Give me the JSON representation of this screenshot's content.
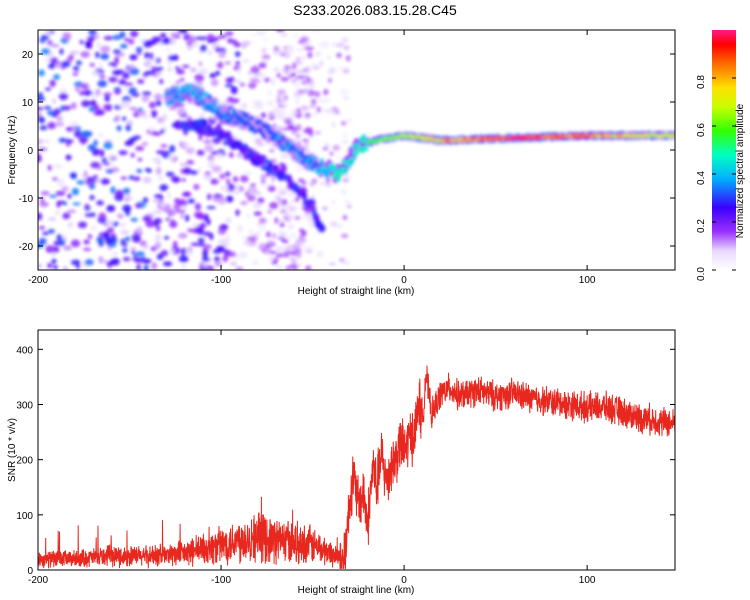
{
  "figure_title": "S233.2026.083.15.28.C45",
  "chart_data": [
    {
      "type": "heatmap",
      "title": "",
      "xlabel": "Height of straight line (km)",
      "ylabel": "Frequency (Hz)",
      "xlim": [
        -200,
        148
      ],
      "ylim": [
        -25,
        25
      ],
      "xticks": [
        {
          "value": -200,
          "label": "-200"
        },
        {
          "value": -100,
          "label": "-100"
        },
        {
          "value": 0,
          "label": "0"
        },
        {
          "value": 100,
          "label": "100"
        }
      ],
      "yticks": [
        {
          "value": 20,
          "label": "20"
        },
        {
          "value": 10,
          "label": "10"
        },
        {
          "value": 0,
          "label": "0"
        },
        {
          "value": -10,
          "label": "-10"
        },
        {
          "value": -20,
          "label": "-20"
        }
      ],
      "colorbar": {
        "label": "Normalized spectral amplitude",
        "range": [
          0,
          1
        ],
        "ticks": [
          {
            "value": 0.0,
            "label": "0.0"
          },
          {
            "value": 0.2,
            "label": "0.2"
          },
          {
            "value": 0.4,
            "label": "0.4"
          },
          {
            "value": 0.6,
            "label": "0.6"
          },
          {
            "value": 0.8,
            "label": "0.8"
          }
        ]
      },
      "ridge": {
        "description_points": [
          {
            "x": -130,
            "freq": 11,
            "amp": 0.35
          },
          {
            "x": -115,
            "freq": 12,
            "amp": 0.4
          },
          {
            "x": -100,
            "freq": 8,
            "amp": 0.35
          },
          {
            "x": -80,
            "freq": 5,
            "amp": 0.3
          },
          {
            "x": -65,
            "freq": 1,
            "amp": 0.35
          },
          {
            "x": -50,
            "freq": -3,
            "amp": 0.35
          },
          {
            "x": -35,
            "freq": -5,
            "amp": 0.5
          },
          {
            "x": -25,
            "freq": 1,
            "amp": 0.45
          },
          {
            "x": -15,
            "freq": 2,
            "amp": 0.6
          },
          {
            "x": 0,
            "freq": 3,
            "amp": 0.65
          },
          {
            "x": 20,
            "freq": 2,
            "amp": 0.8
          },
          {
            "x": 60,
            "freq": 2.5,
            "amp": 0.95
          },
          {
            "x": 100,
            "freq": 3,
            "amp": 0.85
          },
          {
            "x": 148,
            "freq": 3,
            "amp": 0.7
          }
        ],
        "secondary_points": [
          {
            "x": -125,
            "freq": 5,
            "amp": 0.3
          },
          {
            "x": -110,
            "freq": 5,
            "amp": 0.3
          },
          {
            "x": -95,
            "freq": 2,
            "amp": 0.3
          },
          {
            "x": -80,
            "freq": -2,
            "amp": 0.3
          },
          {
            "x": -65,
            "freq": -5,
            "amp": 0.3
          },
          {
            "x": -50,
            "freq": -12,
            "amp": 0.3
          },
          {
            "x": -45,
            "freq": -17,
            "amp": 0.25
          }
        ]
      }
    },
    {
      "type": "line",
      "title": "",
      "xlabel": "Height of straight line (km)",
      "ylabel": "SNR (10 * v/v)",
      "xlim": [
        -200,
        148
      ],
      "ylim": [
        0,
        435
      ],
      "color": "#e8271f",
      "xticks": [
        {
          "value": -200,
          "label": "-200"
        },
        {
          "value": -100,
          "label": "-100"
        },
        {
          "value": 0,
          "label": "0"
        },
        {
          "value": 100,
          "label": "100"
        }
      ],
      "yticks": [
        {
          "value": 0,
          "label": "0"
        },
        {
          "value": 100,
          "label": "100"
        },
        {
          "value": 200,
          "label": "200"
        },
        {
          "value": 300,
          "label": "300"
        },
        {
          "value": 400,
          "label": "400"
        }
      ],
      "series": [
        {
          "name": "SNR",
          "x": [
            -200,
            -180,
            -160,
            -140,
            -120,
            -100,
            -90,
            -80,
            -70,
            -60,
            -50,
            -40,
            -33,
            -30,
            -28,
            -25,
            -22,
            -20,
            -17,
            -15,
            -12,
            -10,
            -7,
            -5,
            -2,
            0,
            3,
            6,
            8,
            10,
            12,
            15,
            20,
            25,
            30,
            40,
            50,
            60,
            70,
            80,
            90,
            100,
            110,
            120,
            130,
            140,
            148
          ],
          "values": [
            20,
            20,
            25,
            25,
            30,
            45,
            55,
            60,
            55,
            50,
            45,
            30,
            20,
            110,
            170,
            120,
            140,
            80,
            190,
            150,
            210,
            160,
            190,
            200,
            230,
            215,
            240,
            250,
            310,
            265,
            360,
            280,
            320,
            330,
            315,
            325,
            315,
            320,
            310,
            305,
            300,
            295,
            295,
            285,
            275,
            270,
            265
          ]
        }
      ]
    }
  ]
}
